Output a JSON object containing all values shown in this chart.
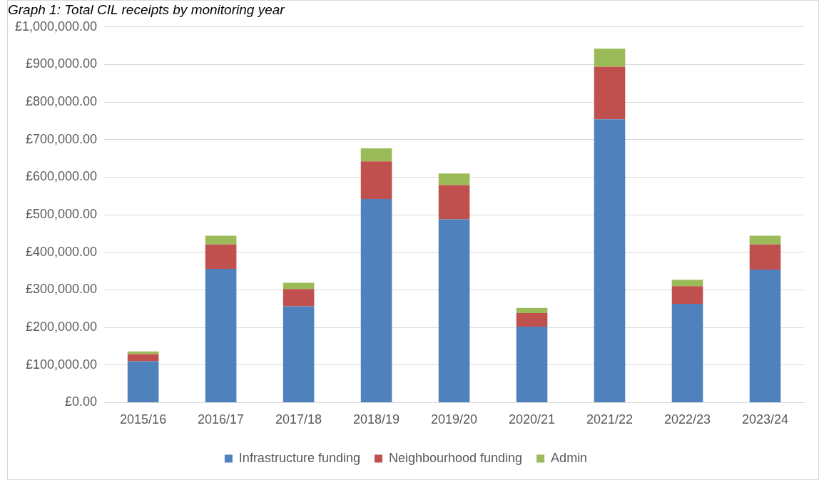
{
  "chart_data": {
    "type": "bar",
    "title": "Graph 1: Total CIL receipts by monitoring year",
    "stacked": true,
    "categories": [
      "2015/16",
      "2016/17",
      "2017/18",
      "2018/19",
      "2019/20",
      "2020/21",
      "2021/22",
      "2022/23",
      "2023/24"
    ],
    "series": [
      {
        "name": "Infrastructure funding",
        "color": "#4f81bd",
        "values": [
          110000,
          356000,
          256000,
          542000,
          488000,
          202000,
          754000,
          263000,
          354000
        ]
      },
      {
        "name": "Neighbourhood funding",
        "color": "#c0504d",
        "values": [
          19000,
          65000,
          46000,
          100000,
          91000,
          36000,
          140000,
          47000,
          67000
        ]
      },
      {
        "name": "Admin",
        "color": "#9bbb59",
        "values": [
          7000,
          23000,
          17000,
          35000,
          31000,
          14000,
          48000,
          17000,
          23000
        ]
      }
    ],
    "ylim": [
      0,
      1000000
    ],
    "yticks": [
      {
        "value": 0,
        "label": "£0.00"
      },
      {
        "value": 100000,
        "label": "£100,000.00"
      },
      {
        "value": 200000,
        "label": "£200,000.00"
      },
      {
        "value": 300000,
        "label": "£300,000.00"
      },
      {
        "value": 400000,
        "label": "£400,000.00"
      },
      {
        "value": 500000,
        "label": "£500,000.00"
      },
      {
        "value": 600000,
        "label": "£600,000.00"
      },
      {
        "value": 700000,
        "label": "£700,000.00"
      },
      {
        "value": 800000,
        "label": "£800,000.00"
      },
      {
        "value": 900000,
        "label": "£900,000.00"
      },
      {
        "value": 1000000,
        "label": "£1,000,000.00"
      }
    ],
    "grid": "y",
    "legend": "bottom"
  }
}
